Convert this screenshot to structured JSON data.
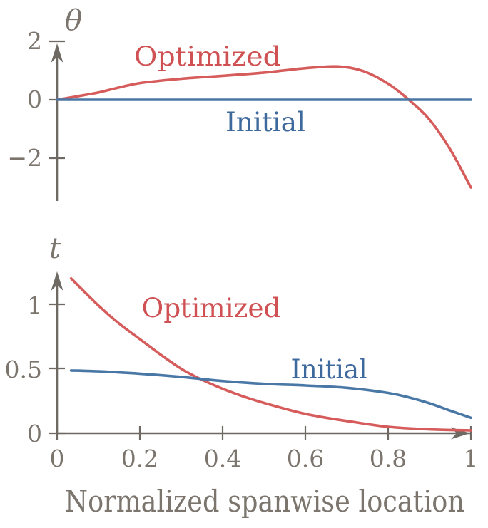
{
  "colors": {
    "axis": "#6e6963",
    "text": "#7b756e",
    "optimized_text": "#cf5153",
    "optimized_line": "#d65c5c",
    "initial_text": "#3e699c",
    "initial_line": "#4a78a6"
  },
  "chart_data": [
    {
      "type": "line",
      "title": "",
      "ylabel": "θ",
      "xlabel": "",
      "xlim": [
        0,
        1
      ],
      "ylim": [
        -3.5,
        2.2
      ],
      "grid": false,
      "legend_position": "inline-annotations",
      "yticks": [
        "2",
        "0",
        "−2"
      ],
      "ytick_values": [
        2,
        0,
        -2
      ],
      "annotations": [
        {
          "text": "Optimized",
          "x": 0.36,
          "y": 1.35
        },
        {
          "text": "Initial",
          "x": 0.5,
          "y": -0.95
        }
      ],
      "series": [
        {
          "name": "Optimized",
          "color": "#d65c5c",
          "x": [
            0,
            0.05,
            0.1,
            0.15,
            0.2,
            0.3,
            0.4,
            0.5,
            0.6,
            0.68,
            0.74,
            0.8,
            0.85,
            0.9,
            0.95,
            1.0
          ],
          "y": [
            0,
            0.12,
            0.25,
            0.42,
            0.57,
            0.72,
            0.82,
            0.93,
            1.08,
            1.14,
            0.98,
            0.55,
            0.0,
            -0.68,
            -1.7,
            -3.0
          ]
        },
        {
          "name": "Initial",
          "color": "#4a78a6",
          "x": [
            0,
            1
          ],
          "y": [
            0,
            0
          ]
        }
      ]
    },
    {
      "type": "line",
      "title": "",
      "ylabel": "t",
      "xlabel": "Normalized spanwise location",
      "xlim": [
        0,
        1
      ],
      "ylim": [
        0,
        1.25
      ],
      "grid": false,
      "legend_position": "inline-annotations",
      "yticks": [
        "1",
        "0.5",
        "0"
      ],
      "ytick_values": [
        1,
        0.5,
        0
      ],
      "xticks": [
        "0",
        "0.2",
        "0.4",
        "0.6",
        "0.8",
        "1"
      ],
      "xtick_values": [
        0,
        0.2,
        0.4,
        0.6,
        0.8,
        1
      ],
      "annotations": [
        {
          "text": "Optimized",
          "x": 0.37,
          "y": 0.92
        },
        {
          "text": "Initial",
          "x": 0.66,
          "y": 0.47
        }
      ],
      "series": [
        {
          "name": "Optimized",
          "color": "#d65c5c",
          "x": [
            0.034,
            0.1,
            0.15,
            0.2,
            0.25,
            0.3,
            0.35,
            0.4,
            0.45,
            0.5,
            0.55,
            0.6,
            0.65,
            0.7,
            0.8,
            0.9,
            1.0
          ],
          "y": [
            1.2,
            0.99,
            0.85,
            0.73,
            0.61,
            0.5,
            0.415,
            0.345,
            0.285,
            0.235,
            0.19,
            0.15,
            0.12,
            0.095,
            0.05,
            0.03,
            0.022
          ]
        },
        {
          "name": "Initial",
          "color": "#4a78a6",
          "x": [
            0.034,
            0.1,
            0.2,
            0.3,
            0.4,
            0.5,
            0.6,
            0.7,
            0.8,
            0.85,
            0.9,
            0.95,
            1.0
          ],
          "y": [
            0.487,
            0.48,
            0.462,
            0.437,
            0.405,
            0.383,
            0.37,
            0.352,
            0.312,
            0.278,
            0.232,
            0.175,
            0.12
          ]
        }
      ]
    }
  ]
}
